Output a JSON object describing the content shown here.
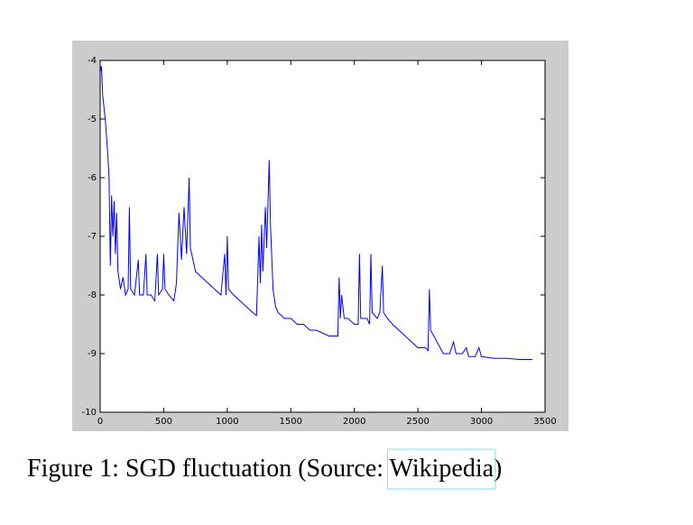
{
  "chart_data": {
    "type": "line",
    "x": [
      0,
      10,
      20,
      40,
      60,
      70,
      80,
      90,
      100,
      110,
      120,
      130,
      140,
      160,
      180,
      200,
      220,
      230,
      240,
      270,
      300,
      310,
      340,
      360,
      370,
      400,
      430,
      450,
      460,
      490,
      500,
      510,
      540,
      580,
      600,
      620,
      640,
      660,
      680,
      700,
      710,
      730,
      750,
      800,
      850,
      900,
      950,
      980,
      990,
      1000,
      1010,
      1050,
      1100,
      1150,
      1200,
      1230,
      1250,
      1260,
      1270,
      1280,
      1300,
      1310,
      1330,
      1340,
      1360,
      1380,
      1400,
      1450,
      1500,
      1550,
      1600,
      1650,
      1700,
      1750,
      1800,
      1850,
      1870,
      1880,
      1890,
      1900,
      1920,
      1950,
      2000,
      2030,
      2040,
      2050,
      2100,
      2120,
      2130,
      2140,
      2180,
      2200,
      2220,
      2230,
      2260,
      2300,
      2350,
      2400,
      2450,
      2500,
      2560,
      2580,
      2590,
      2600,
      2650,
      2700,
      2750,
      2780,
      2800,
      2850,
      2880,
      2900,
      2950,
      2980,
      3000,
      3100,
      3200,
      3300,
      3400
    ],
    "series": [
      {
        "color": "#0000ff",
        "values": [
          -4.2,
          -4.1,
          -4.6,
          -5.0,
          -5.6,
          -6.0,
          -7.5,
          -6.3,
          -7.0,
          -6.4,
          -7.3,
          -6.6,
          -7.6,
          -7.9,
          -7.7,
          -8.0,
          -7.9,
          -6.5,
          -7.9,
          -8.0,
          -7.4,
          -8.0,
          -8.0,
          -7.3,
          -8.0,
          -8.0,
          -8.1,
          -7.3,
          -8.0,
          -7.9,
          -7.3,
          -7.9,
          -8.0,
          -8.1,
          -7.8,
          -6.6,
          -7.4,
          -6.5,
          -7.3,
          -6.0,
          -7.2,
          -7.4,
          -7.6,
          -7.7,
          -7.8,
          -7.9,
          -8.0,
          -7.3,
          -8.0,
          -7.0,
          -7.9,
          -8.0,
          -8.1,
          -8.2,
          -8.3,
          -8.35,
          -7.0,
          -7.8,
          -6.8,
          -7.6,
          -6.5,
          -7.2,
          -5.7,
          -6.8,
          -7.9,
          -8.2,
          -8.3,
          -8.4,
          -8.4,
          -8.5,
          -8.5,
          -8.6,
          -8.6,
          -8.65,
          -8.7,
          -8.7,
          -8.7,
          -7.7,
          -8.4,
          -8.0,
          -8.4,
          -8.4,
          -8.5,
          -8.5,
          -7.3,
          -8.4,
          -8.4,
          -8.5,
          -7.3,
          -8.3,
          -8.4,
          -8.3,
          -7.5,
          -8.3,
          -8.4,
          -8.5,
          -8.6,
          -8.7,
          -8.8,
          -8.9,
          -8.9,
          -8.95,
          -7.9,
          -8.6,
          -8.8,
          -9.0,
          -9.0,
          -8.8,
          -9.0,
          -9.0,
          -8.9,
          -9.05,
          -9.05,
          -8.9,
          -9.05,
          -9.08,
          -9.08,
          -9.1,
          -9.1
        ]
      }
    ],
    "xlim": [
      0,
      3500
    ],
    "xticks": [
      0,
      500,
      1000,
      1500,
      2000,
      2500,
      3000,
      3500
    ],
    "ylim": [
      -10,
      -4
    ],
    "yticks": [
      -10,
      -9,
      -8,
      -7,
      -6,
      -5,
      -4
    ],
    "caption_prefix": "Figure 1: SGD fluctuation (Source: ",
    "source_link": "Wikipedia",
    "caption_suffix": ")"
  }
}
